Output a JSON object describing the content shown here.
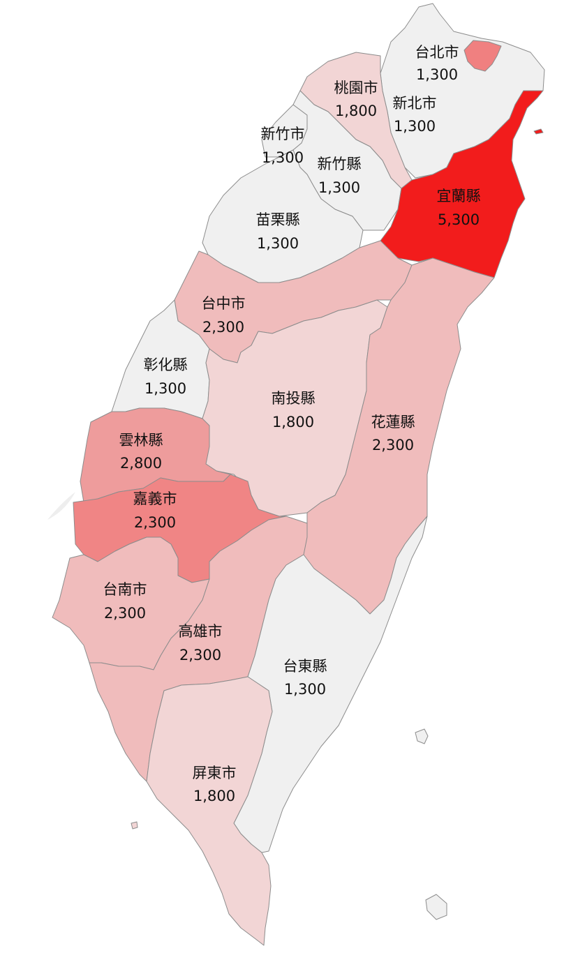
{
  "map": {
    "colors": {
      "level_1300": "#f0f0f0",
      "level_1800": "#f2d5d5",
      "level_2300": "#f0bcbc",
      "level_2800": "#ee9c9c",
      "level_2300_chiayi": "#f08585",
      "level_taipei": "#f08080",
      "level_5300": "#f21c1c",
      "border": "#8c8c8c"
    },
    "regions": [
      {
        "id": "taipei-city",
        "name": "台北市",
        "value": "1,300",
        "level": "level_taipei"
      },
      {
        "id": "new-taipei",
        "name": "新北市",
        "value": "1,300",
        "level": "level_1300"
      },
      {
        "id": "taoyuan",
        "name": "桃園市",
        "value": "1,800",
        "level": "level_1800"
      },
      {
        "id": "hsinchu-city",
        "name": "新竹市",
        "value": "1,300",
        "level": "level_1300"
      },
      {
        "id": "hsinchu-county",
        "name": "新竹縣",
        "value": "1,300",
        "level": "level_1300"
      },
      {
        "id": "miaoli",
        "name": "苗栗縣",
        "value": "1,300",
        "level": "level_1300"
      },
      {
        "id": "yilan",
        "name": "宜蘭縣",
        "value": "5,300",
        "level": "level_5300"
      },
      {
        "id": "taichung",
        "name": "台中市",
        "value": "2,300",
        "level": "level_2300"
      },
      {
        "id": "changhua",
        "name": "彰化縣",
        "value": "1,300",
        "level": "level_1300"
      },
      {
        "id": "nantou",
        "name": "南投縣",
        "value": "1,800",
        "level": "level_1800"
      },
      {
        "id": "hualien",
        "name": "花蓮縣",
        "value": "2,300",
        "level": "level_2300"
      },
      {
        "id": "yunlin",
        "name": "雲林縣",
        "value": "2,800",
        "level": "level_2800"
      },
      {
        "id": "chiayi",
        "name": "嘉義市",
        "value": "2,300",
        "level": "level_2300_chiayi"
      },
      {
        "id": "tainan",
        "name": "台南市",
        "value": "2,300",
        "level": "level_2300"
      },
      {
        "id": "kaohsiung",
        "name": "高雄市",
        "value": "2,300",
        "level": "level_2300"
      },
      {
        "id": "taitung",
        "name": "台東縣",
        "value": "1,300",
        "level": "level_1300"
      },
      {
        "id": "pingtung",
        "name": "屏東市",
        "value": "1,800",
        "level": "level_1800"
      }
    ]
  }
}
